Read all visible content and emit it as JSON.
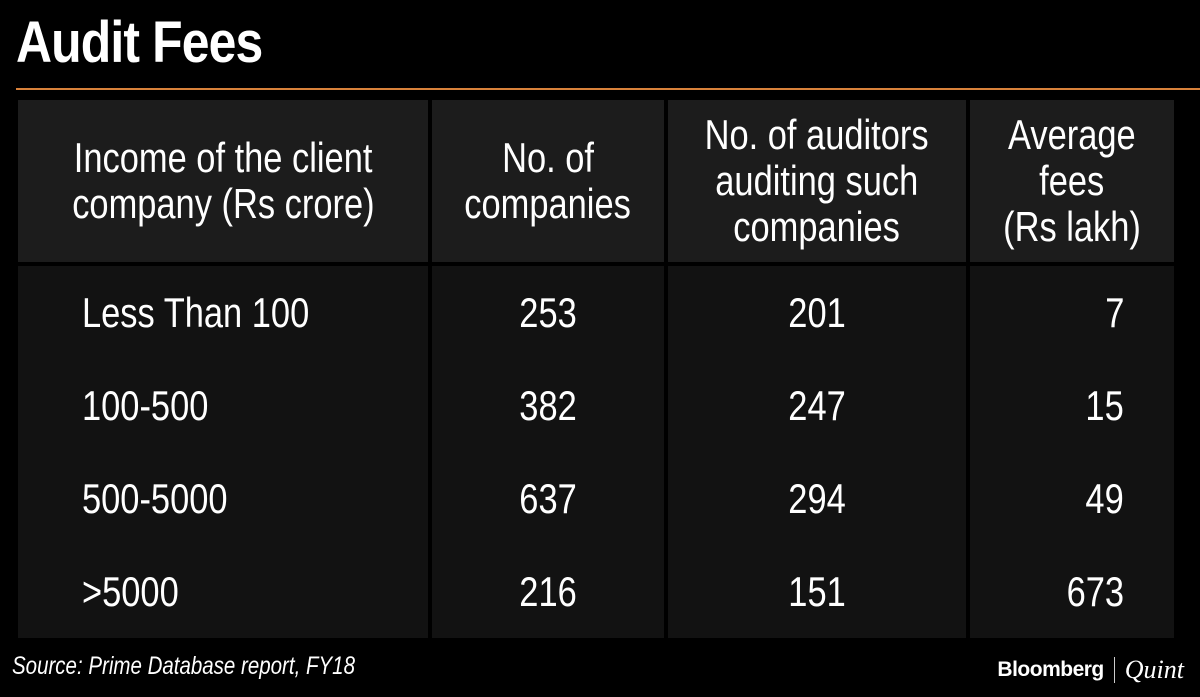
{
  "title": "Audit Fees",
  "colors": {
    "background": "#000000",
    "header_cell": "#1c1c1c",
    "body_cell": "#121212",
    "rule": "#d9823b",
    "text": "#ffffff"
  },
  "table": {
    "headers": [
      [
        "Income of the client",
        "company (Rs crore)"
      ],
      [
        "No. of",
        "companies"
      ],
      [
        "No. of auditors",
        "auditing such",
        "companies"
      ],
      [
        "Average",
        "fees",
        "(Rs lakh)"
      ]
    ],
    "rows": [
      [
        "Less Than 100",
        "253",
        "201",
        "7"
      ],
      [
        "100-500",
        "382",
        "247",
        "15"
      ],
      [
        "500-5000",
        "637",
        "294",
        "49"
      ],
      [
        ">5000",
        "216",
        "151",
        "673"
      ]
    ]
  },
  "chart_data": {
    "type": "table",
    "title": "Audit Fees",
    "columns": [
      "Income of the client company (Rs crore)",
      "No. of companies",
      "No. of auditors auditing such companies",
      "Average fees (Rs lakh)"
    ],
    "rows": [
      {
        "income": "Less Than 100",
        "companies": 253,
        "auditors": 201,
        "avg_fees": 7
      },
      {
        "income": "100-500",
        "companies": 382,
        "auditors": 247,
        "avg_fees": 15
      },
      {
        "income": "500-5000",
        "companies": 637,
        "auditors": 294,
        "avg_fees": 49
      },
      {
        "income": ">5000",
        "companies": 216,
        "auditors": 151,
        "avg_fees": 673
      }
    ],
    "source": "Source: Prime Database report, FY18"
  },
  "footer": {
    "source": "Source: Prime Database report, FY18",
    "brand_left": "Bloomberg",
    "brand_right": "Quint"
  }
}
